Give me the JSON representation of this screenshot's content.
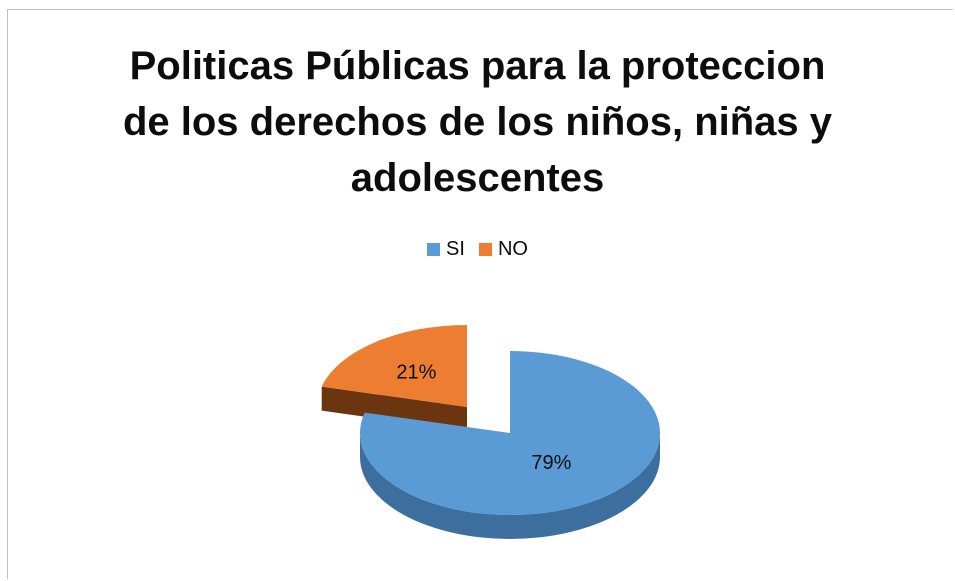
{
  "chart_data": {
    "type": "pie",
    "title_lines": [
      "Politicas Públicas para la proteccion",
      "de los derechos de los niños, niñas y",
      "adolescentes"
    ],
    "legend_position": "top",
    "series": [
      {
        "name": "SI",
        "value": 79,
        "label": "79%",
        "color": "#5b9bd5",
        "side_color": "#3d6f9e"
      },
      {
        "name": "NO",
        "value": 21,
        "label": "21%",
        "color": "#ed7d31",
        "side_color": "#6b3510"
      }
    ]
  }
}
